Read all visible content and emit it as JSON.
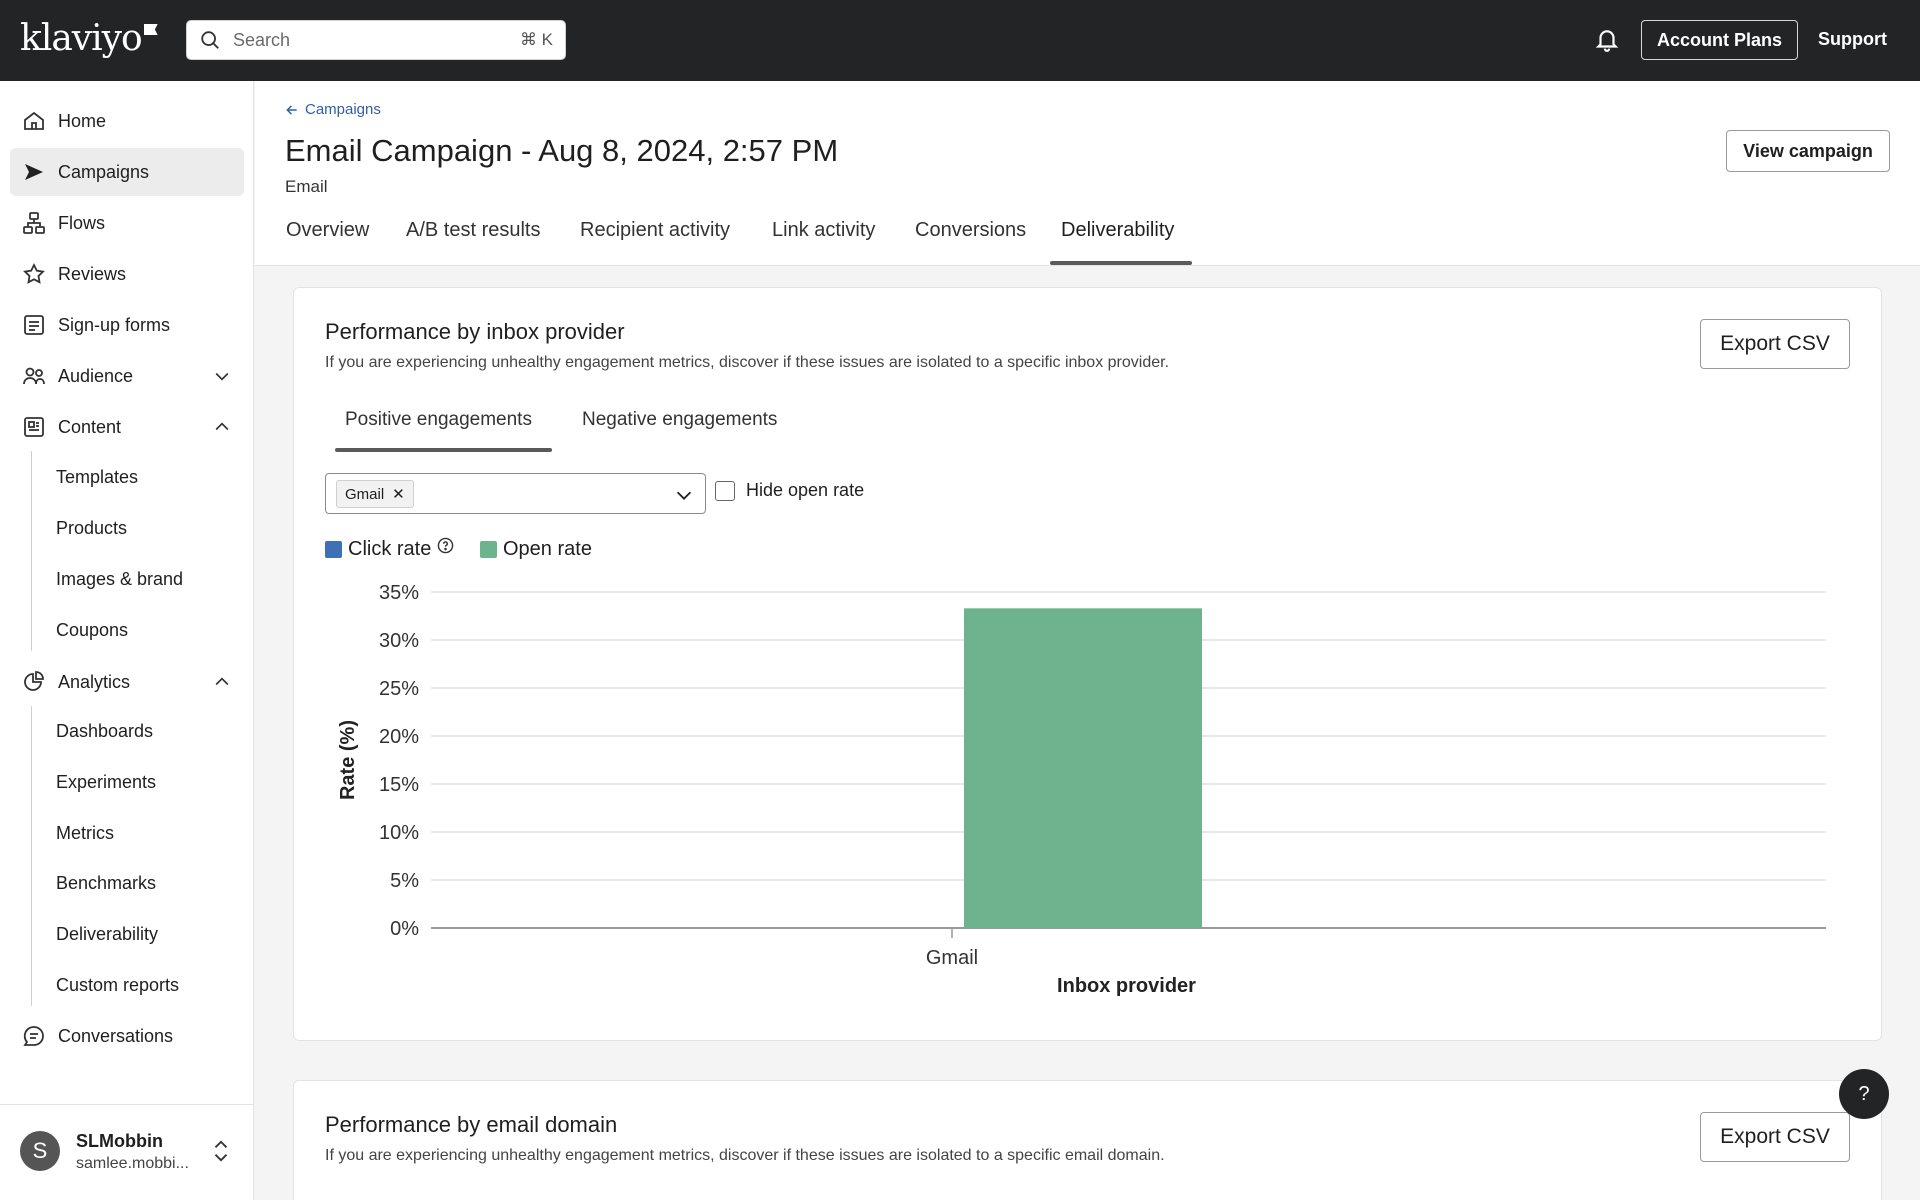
{
  "topbar": {
    "logo_text": "klaviyo",
    "search_placeholder": "Search",
    "search_shortcut": "⌘ K",
    "account_plans_label": "Account Plans",
    "support_label": "Support"
  },
  "sidebar": {
    "items": [
      {
        "label": "Home",
        "icon": "home-icon"
      },
      {
        "label": "Campaigns",
        "icon": "campaign-icon",
        "active": true
      },
      {
        "label": "Flows",
        "icon": "flows-icon"
      },
      {
        "label": "Reviews",
        "icon": "star-icon"
      },
      {
        "label": "Sign-up forms",
        "icon": "form-icon"
      },
      {
        "label": "Audience",
        "icon": "audience-icon"
      },
      {
        "label": "Content",
        "icon": "content-icon"
      },
      {
        "label": "Analytics",
        "icon": "analytics-icon"
      },
      {
        "label": "Conversations",
        "icon": "chat-icon"
      }
    ],
    "content_sub": [
      "Templates",
      "Products",
      "Images & brand",
      "Coupons"
    ],
    "analytics_sub": [
      "Dashboards",
      "Experiments",
      "Metrics",
      "Benchmarks",
      "Deliverability",
      "Custom reports"
    ],
    "user": {
      "initial": "S",
      "name": "SLMobbin",
      "email": "samlee.mobbi..."
    }
  },
  "header": {
    "breadcrumb": "Campaigns",
    "title": "Email Campaign - Aug 8, 2024, 2:57 PM",
    "subtitle": "Email",
    "view_campaign_label": "View campaign",
    "tabs": [
      "Overview",
      "A/B test results",
      "Recipient activity",
      "Link activity",
      "Conversions",
      "Deliverability"
    ],
    "active_tab": "Deliverability"
  },
  "card1": {
    "title": "Performance by inbox provider",
    "description": "If you are experiencing unhealthy engagement metrics, discover if these issues are isolated to a specific inbox provider.",
    "export_label": "Export CSV",
    "subtabs": [
      "Positive engagements",
      "Negative engagements"
    ],
    "active_subtab": "Positive engagements",
    "selected_chip": "Gmail",
    "chip_remove": "✕",
    "hide_open_rate_label": "Hide open rate",
    "hide_open_rate_checked": false,
    "legend": [
      {
        "label": "Click rate",
        "color": "#3f6fb5",
        "help": "?"
      },
      {
        "label": "Open rate",
        "color": "#6db38e"
      }
    ]
  },
  "card2": {
    "title": "Performance by email domain",
    "description": "If you are experiencing unhealthy engagement metrics, discover if these issues are isolated to a specific email domain.",
    "export_label": "Export CSV"
  },
  "help_fab": "?",
  "chart_data": {
    "type": "bar",
    "categories": [
      "Gmail"
    ],
    "series": [
      {
        "name": "Click rate",
        "color": "#3f6fb5",
        "values": [
          0
        ]
      },
      {
        "name": "Open rate",
        "color": "#6db38e",
        "values": [
          33.3
        ]
      }
    ],
    "xlabel": "Inbox provider",
    "ylabel": "Rate (%)",
    "ylim": [
      0,
      35
    ],
    "yticks": [
      0,
      5,
      10,
      15,
      20,
      25,
      30,
      35
    ],
    "ytick_labels": [
      "0%",
      "5%",
      "10%",
      "15%",
      "20%",
      "25%",
      "30%",
      "35%"
    ],
    "grid": true
  }
}
